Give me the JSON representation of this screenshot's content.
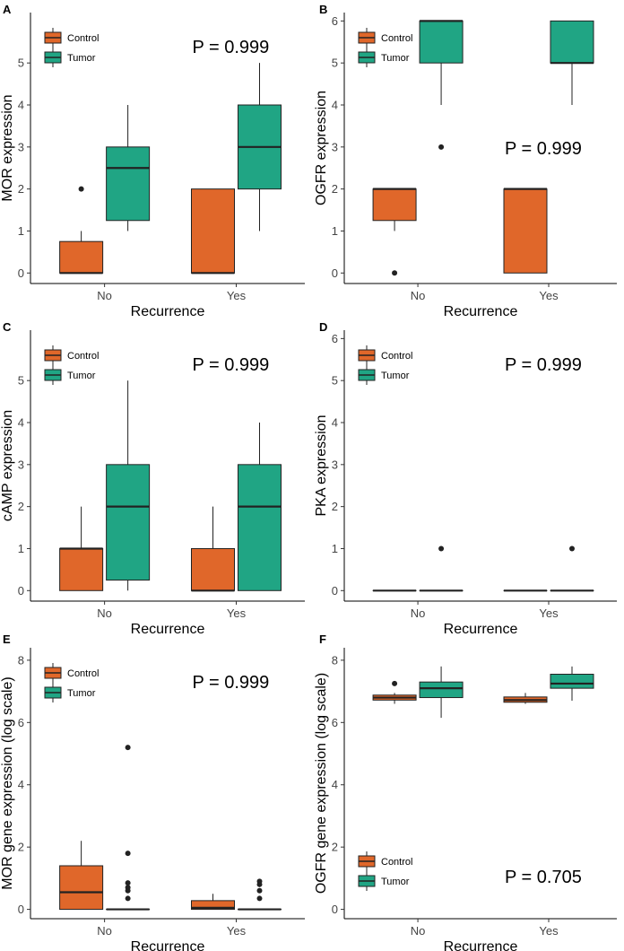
{
  "colors": {
    "control": "#E0672A",
    "tumor": "#20A584",
    "line": "#222222"
  },
  "chart_data": [
    {
      "panel": "A",
      "type": "box",
      "ylabel": "MOR expression",
      "xlabel": "Recurrence",
      "ylim": [
        -0.25,
        6.2
      ],
      "yticks": [
        0,
        1,
        2,
        3,
        4,
        5
      ],
      "categories": [
        "No",
        "Yes"
      ],
      "legend": [
        "Control",
        "Tumor"
      ],
      "legend_position": "top-left",
      "pvalue": "P = 0.999",
      "pvalue_position": "top",
      "boxes": [
        {
          "category": "No",
          "group": "Control",
          "min": 0,
          "q1": 0,
          "median": 0,
          "q3": 0.75,
          "max": 1,
          "outliers": [
            2
          ]
        },
        {
          "category": "No",
          "group": "Tumor",
          "min": 1,
          "q1": 1.25,
          "median": 2.5,
          "q3": 3,
          "max": 4,
          "outliers": []
        },
        {
          "category": "Yes",
          "group": "Control",
          "min": 0,
          "q1": 0,
          "median": 0,
          "q3": 2,
          "max": 2,
          "outliers": []
        },
        {
          "category": "Yes",
          "group": "Tumor",
          "min": 1,
          "q1": 2,
          "median": 3,
          "q3": 4,
          "max": 5,
          "outliers": []
        }
      ]
    },
    {
      "panel": "B",
      "type": "box",
      "ylabel": "OGFR expression",
      "xlabel": "Recurrence",
      "ylim": [
        -0.25,
        6.2
      ],
      "yticks": [
        0,
        1,
        2,
        3,
        4,
        5,
        6
      ],
      "categories": [
        "No",
        "Yes"
      ],
      "legend": [
        "Control",
        "Tumor"
      ],
      "legend_position": "top-left",
      "pvalue": "P = 0.999",
      "pvalue_position": "middle",
      "boxes": [
        {
          "category": "No",
          "group": "Control",
          "min": 1,
          "q1": 1.25,
          "median": 2,
          "q3": 2,
          "max": 2,
          "outliers": [
            0
          ]
        },
        {
          "category": "No",
          "group": "Tumor",
          "min": 4,
          "q1": 5,
          "median": 6,
          "q3": 6,
          "max": 6,
          "outliers": [
            3
          ]
        },
        {
          "category": "Yes",
          "group": "Control",
          "min": 0,
          "q1": 0,
          "median": 2,
          "q3": 2,
          "max": 2,
          "outliers": []
        },
        {
          "category": "Yes",
          "group": "Tumor",
          "min": 4,
          "q1": 5,
          "median": 5,
          "q3": 6,
          "max": 6,
          "outliers": []
        }
      ]
    },
    {
      "panel": "C",
      "type": "box",
      "ylabel": "cAMP expression",
      "xlabel": "Recurrence",
      "ylim": [
        -0.25,
        6.2
      ],
      "yticks": [
        0,
        1,
        2,
        3,
        4,
        5
      ],
      "categories": [
        "No",
        "Yes"
      ],
      "legend": [
        "Control",
        "Tumor"
      ],
      "legend_position": "top-left",
      "pvalue": "P = 0.999",
      "pvalue_position": "top",
      "boxes": [
        {
          "category": "No",
          "group": "Control",
          "min": 0,
          "q1": 0,
          "median": 1,
          "q3": 1,
          "max": 2,
          "outliers": []
        },
        {
          "category": "No",
          "group": "Tumor",
          "min": 0,
          "q1": 0.25,
          "median": 2,
          "q3": 3,
          "max": 5,
          "outliers": []
        },
        {
          "category": "Yes",
          "group": "Control",
          "min": 0,
          "q1": 0,
          "median": 0,
          "q3": 1,
          "max": 2,
          "outliers": []
        },
        {
          "category": "Yes",
          "group": "Tumor",
          "min": 0,
          "q1": 0,
          "median": 2,
          "q3": 3,
          "max": 4,
          "outliers": []
        }
      ]
    },
    {
      "panel": "D",
      "type": "box",
      "ylabel": "PKA expression",
      "xlabel": "Recurrence",
      "ylim": [
        -0.25,
        6.2
      ],
      "yticks": [
        0,
        1,
        2,
        3,
        4,
        5,
        6
      ],
      "categories": [
        "No",
        "Yes"
      ],
      "legend": [
        "Control",
        "Tumor"
      ],
      "legend_position": "top-left",
      "pvalue": "P = 0.999",
      "pvalue_position": "top",
      "boxes": [
        {
          "category": "No",
          "group": "Control",
          "min": 0,
          "q1": 0,
          "median": 0,
          "q3": 0,
          "max": 0,
          "outliers": []
        },
        {
          "category": "No",
          "group": "Tumor",
          "min": 0,
          "q1": 0,
          "median": 0,
          "q3": 0,
          "max": 0,
          "outliers": [
            1
          ]
        },
        {
          "category": "Yes",
          "group": "Control",
          "min": 0,
          "q1": 0,
          "median": 0,
          "q3": 0,
          "max": 0,
          "outliers": []
        },
        {
          "category": "Yes",
          "group": "Tumor",
          "min": 0,
          "q1": 0,
          "median": 0,
          "q3": 0,
          "max": 0,
          "outliers": [
            1
          ]
        }
      ]
    },
    {
      "panel": "E",
      "type": "box",
      "ylabel": "MOR gene expression (log scale)",
      "xlabel": "Recurrence",
      "ylim": [
        -0.3,
        8.4
      ],
      "yticks": [
        0,
        2,
        4,
        6,
        8
      ],
      "categories": [
        "No",
        "Yes"
      ],
      "legend": [
        "Control",
        "Tumor"
      ],
      "legend_position": "top-left",
      "pvalue": "P = 0.999",
      "pvalue_position": "top",
      "boxes": [
        {
          "category": "No",
          "group": "Control",
          "min": 0,
          "q1": 0,
          "median": 0.55,
          "q3": 1.4,
          "max": 2.2,
          "outliers": []
        },
        {
          "category": "No",
          "group": "Tumor",
          "min": 0,
          "q1": 0,
          "median": 0,
          "q3": 0,
          "max": 0,
          "outliers": [
            0.35,
            0.6,
            0.7,
            0.85,
            1.8,
            5.2
          ]
        },
        {
          "category": "Yes",
          "group": "Control",
          "min": 0,
          "q1": 0,
          "median": 0.05,
          "q3": 0.28,
          "max": 0.5,
          "outliers": []
        },
        {
          "category": "Yes",
          "group": "Tumor",
          "min": 0,
          "q1": 0,
          "median": 0,
          "q3": 0,
          "max": 0,
          "outliers": [
            0.35,
            0.6,
            0.8,
            0.9
          ]
        }
      ]
    },
    {
      "panel": "F",
      "type": "box",
      "ylabel": "OGFR gene expression (log scale)",
      "xlabel": "Recurrence",
      "ylim": [
        -0.3,
        8.4
      ],
      "yticks": [
        0,
        2,
        4,
        6,
        8
      ],
      "categories": [
        "No",
        "Yes"
      ],
      "legend": [
        "Control",
        "Tumor"
      ],
      "legend_position": "bottom-left",
      "pvalue": "P = 0.705",
      "pvalue_position": "bottom",
      "boxes": [
        {
          "category": "No",
          "group": "Control",
          "min": 6.6,
          "q1": 6.72,
          "median": 6.8,
          "q3": 6.88,
          "max": 6.95,
          "outliers": [
            7.25
          ]
        },
        {
          "category": "No",
          "group": "Tumor",
          "min": 6.15,
          "q1": 6.8,
          "median": 7.1,
          "q3": 7.3,
          "max": 7.8,
          "outliers": []
        },
        {
          "category": "Yes",
          "group": "Control",
          "min": 6.6,
          "q1": 6.65,
          "median": 6.72,
          "q3": 6.82,
          "max": 6.95,
          "outliers": []
        },
        {
          "category": "Yes",
          "group": "Tumor",
          "min": 6.7,
          "q1": 7.1,
          "median": 7.25,
          "q3": 7.55,
          "max": 7.8,
          "outliers": []
        }
      ]
    }
  ]
}
